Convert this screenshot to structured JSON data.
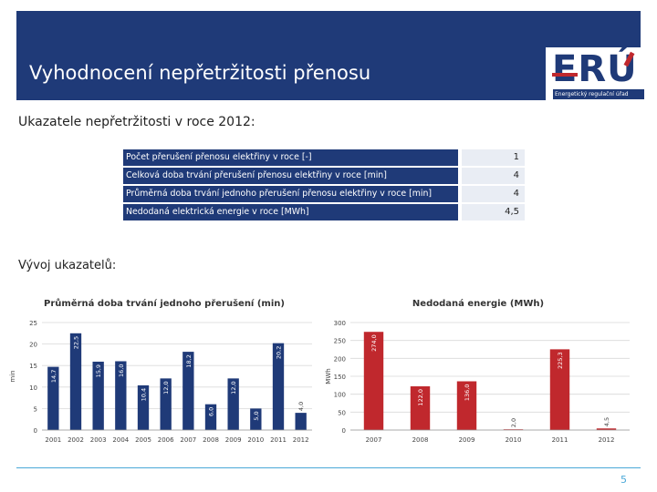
{
  "slide": {
    "title": "Vyhodnocení nepřetržitosti přenosu",
    "page_number": "5",
    "colors": {
      "header": "#1f3a78",
      "bar_blue": "#1f3a78",
      "bar_red": "#c0282d",
      "accent_line": "#4aa8d8"
    }
  },
  "logo": {
    "mark": "ERÚ",
    "subtitle": "Energetický regulační úřad",
    "icon": "eru-logo"
  },
  "indicators": {
    "heading": "Ukazatele nepřetržitosti v roce 2012:",
    "rows": [
      {
        "label": "Počet přerušení přenosu elektřiny v roce [-]",
        "value": "1"
      },
      {
        "label": "Celková doba trvání přerušení přenosu elektřiny v roce [min]",
        "value": "4"
      },
      {
        "label": "Průměrná doba trvání jednoho přerušení přenosu elektřiny v roce [min]",
        "value": "4"
      },
      {
        "label": "Nedodaná elektrická energie v roce [MWh]",
        "value": "4,5"
      }
    ]
  },
  "trend": {
    "heading": "Vývoj ukazatelů:"
  },
  "chart_data": [
    {
      "type": "bar",
      "title": "Průměrná doba trvání jednoho přerušení (min)",
      "ylabel": "min",
      "xlabel": "",
      "ylim": [
        0,
        25
      ],
      "yticks": [
        "0",
        "5",
        "10",
        "15",
        "20",
        "25"
      ],
      "categories": [
        "2001",
        "2002",
        "2003",
        "2004",
        "2005",
        "2006",
        "2007",
        "2008",
        "2009",
        "2010",
        "2011",
        "2012"
      ],
      "values": [
        14.7,
        22.5,
        15.9,
        16.0,
        10.4,
        12.0,
        18.2,
        6.0,
        12.0,
        5.0,
        20.2,
        4.0
      ],
      "value_labels": [
        "14,7",
        "22,5",
        "15,9",
        "16,0",
        "10,4",
        "12,0",
        "18,2",
        "6,0",
        "12,0",
        "5,0",
        "20,2",
        "4,0"
      ],
      "color": "#1f3a78",
      "grid": true
    },
    {
      "type": "bar",
      "title": "Nedodaná energie (MWh)",
      "ylabel": "MWh",
      "xlabel": "",
      "ylim": [
        0,
        300
      ],
      "yticks": [
        "0",
        "50",
        "100",
        "150",
        "200",
        "250",
        "300"
      ],
      "categories": [
        "2007",
        "2008",
        "2009",
        "2010",
        "2011",
        "2012"
      ],
      "values": [
        274.0,
        122.0,
        136.0,
        2.0,
        225.3,
        4.5
      ],
      "value_labels": [
        "274,0",
        "122,0",
        "136,0",
        "2,0",
        "225,3",
        "4,5"
      ],
      "color": "#c0282d",
      "grid": true
    }
  ]
}
